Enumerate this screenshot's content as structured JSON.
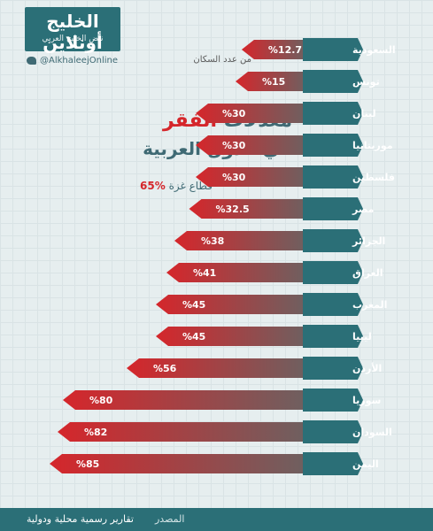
{
  "logo": {
    "brand": "الخليج أونلاين",
    "tagline": "نبض الخليج العربي"
  },
  "handle": "@AlkhaleejOnline",
  "title": {
    "line1_before": "معدلات ",
    "line1_highlight": "الفقر",
    "line2": "في الدول العربية"
  },
  "notes": {
    "gaza_label": "قطاع غزة ",
    "gaza_value": "%65",
    "population_note": "من عدد السكان"
  },
  "footer": {
    "source_label": "المصدر",
    "source_text": "تقارير رسمية محلية ودولية"
  },
  "colors": {
    "teal": "#2b6f77",
    "red": "#d5262b",
    "bar_end": "#6e6060"
  },
  "chart_data": {
    "type": "bar",
    "orientation": "horizontal",
    "categories": [
      "السعودية",
      "تونس",
      "لبنان",
      "موريتانيا",
      "فلسطين",
      "مصر",
      "الجزائر",
      "العراق",
      "المغرب",
      "ليبيا",
      "الأردن",
      "سوريا",
      "السودان",
      "اليمن"
    ],
    "values": [
      12.7,
      15,
      30,
      30,
      30,
      32.5,
      38,
      41,
      45,
      45,
      56,
      80,
      82,
      85
    ],
    "value_labels": [
      "%12.7",
      "%15",
      "%30",
      "%30",
      "%30",
      "%32.5",
      "%38",
      "%41",
      "%45",
      "%45",
      "%56",
      "%80",
      "%82",
      "%85"
    ],
    "unit": "%"
  }
}
